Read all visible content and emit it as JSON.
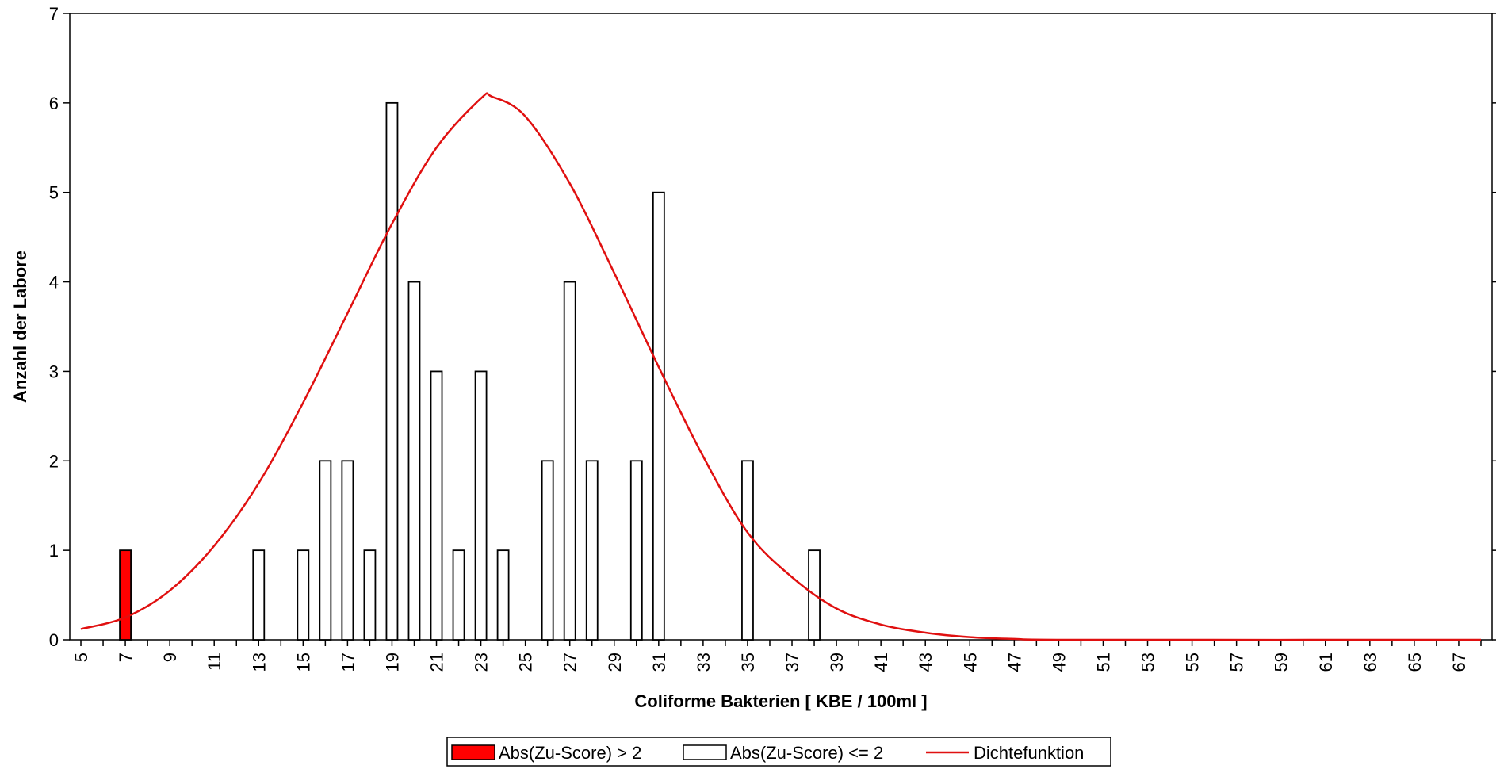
{
  "chart_data": {
    "type": "bar",
    "title": "",
    "xlabel": "Coliforme Bakterien [ KBE / 100ml ]",
    "ylabel": "Anzahl der Labore",
    "xlim": [
      4.5,
      68.5
    ],
    "ylim": [
      0,
      7
    ],
    "y_ticks": [
      0,
      1,
      2,
      3,
      4,
      5,
      6,
      7
    ],
    "x_tick_labels": [
      "5",
      "7",
      "9",
      "11",
      "13",
      "15",
      "17",
      "19",
      "21",
      "23",
      "25",
      "27",
      "29",
      "31",
      "33",
      "35",
      "37",
      "39",
      "41",
      "43",
      "45",
      "47",
      "49",
      "51",
      "53",
      "55",
      "57",
      "59",
      "61",
      "63",
      "65",
      "67"
    ],
    "grid": false,
    "legend_position": "bottom-center",
    "colors": {
      "outlier": "#ff0000",
      "normal": "#ffffff",
      "density": "#e01010"
    },
    "series": [
      {
        "name": "Abs(Zu-Score) > 2",
        "points": [
          {
            "x": 7,
            "y": 1
          }
        ]
      },
      {
        "name": "Abs(Zu-Score) <= 2",
        "points": [
          {
            "x": 13,
            "y": 1
          },
          {
            "x": 15,
            "y": 1
          },
          {
            "x": 16,
            "y": 2
          },
          {
            "x": 17,
            "y": 2
          },
          {
            "x": 18,
            "y": 1
          },
          {
            "x": 19,
            "y": 6
          },
          {
            "x": 20,
            "y": 4
          },
          {
            "x": 21,
            "y": 3
          },
          {
            "x": 22,
            "y": 1
          },
          {
            "x": 23,
            "y": 3
          },
          {
            "x": 24,
            "y": 1
          },
          {
            "x": 26,
            "y": 2
          },
          {
            "x": 27,
            "y": 4
          },
          {
            "x": 28,
            "y": 2
          },
          {
            "x": 30,
            "y": 2
          },
          {
            "x": 31,
            "y": 5
          },
          {
            "x": 35,
            "y": 2
          },
          {
            "x": 38,
            "y": 1
          }
        ]
      },
      {
        "name": "Dichtefunktion",
        "type": "line",
        "points": [
          {
            "x": 5,
            "y": 0.12
          },
          {
            "x": 7,
            "y": 0.25
          },
          {
            "x": 9,
            "y": 0.55
          },
          {
            "x": 11,
            "y": 1.05
          },
          {
            "x": 13,
            "y": 1.75
          },
          {
            "x": 15,
            "y": 2.65
          },
          {
            "x": 17,
            "y": 3.65
          },
          {
            "x": 19,
            "y": 4.65
          },
          {
            "x": 21,
            "y": 5.5
          },
          {
            "x": 23,
            "y": 6.05
          },
          {
            "x": 23.5,
            "y": 6.07
          },
          {
            "x": 25,
            "y": 5.85
          },
          {
            "x": 27,
            "y": 5.1
          },
          {
            "x": 29,
            "y": 4.1
          },
          {
            "x": 31,
            "y": 3.05
          },
          {
            "x": 33,
            "y": 2.05
          },
          {
            "x": 35,
            "y": 1.2
          },
          {
            "x": 37,
            "y": 0.7
          },
          {
            "x": 39,
            "y": 0.35
          },
          {
            "x": 41,
            "y": 0.17
          },
          {
            "x": 43,
            "y": 0.08
          },
          {
            "x": 45,
            "y": 0.03
          },
          {
            "x": 47,
            "y": 0.01
          },
          {
            "x": 50,
            "y": 0.0
          },
          {
            "x": 68,
            "y": 0.0
          }
        ]
      }
    ]
  }
}
